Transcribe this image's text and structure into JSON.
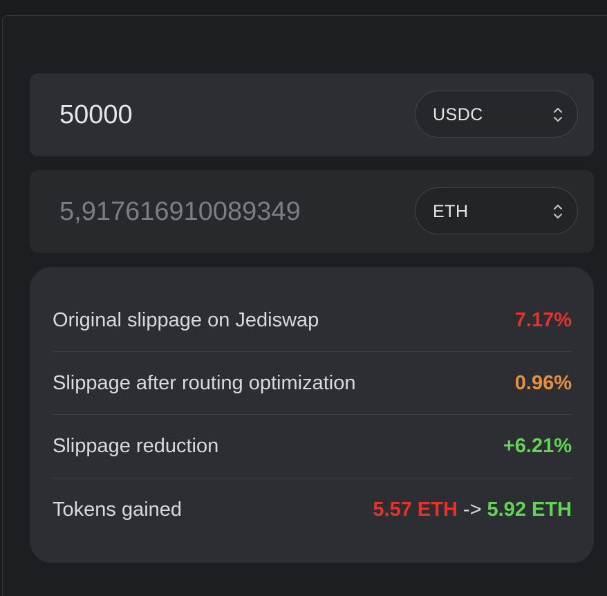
{
  "swap": {
    "from": {
      "amount": "50000",
      "token": "USDC"
    },
    "to": {
      "amount": "5,917616910089349",
      "token": "ETH"
    }
  },
  "stats": {
    "original_slippage": {
      "label": "Original slippage on Jediswap",
      "value": "7.17%"
    },
    "optimized_slippage": {
      "label": "Slippage after routing optimization",
      "value": "0.96%"
    },
    "reduction": {
      "label": "Slippage reduction",
      "value": "+6.21%"
    },
    "tokens_gained": {
      "label": "Tokens gained",
      "before": "5.57 ETH",
      "arrow": "->",
      "after": "5.92 ETH"
    }
  },
  "colors": {
    "negative": "#e5332a",
    "warning": "#e8903c",
    "positive": "#62d654"
  },
  "icons": {
    "token_select": "chevron-up-down-icon"
  }
}
